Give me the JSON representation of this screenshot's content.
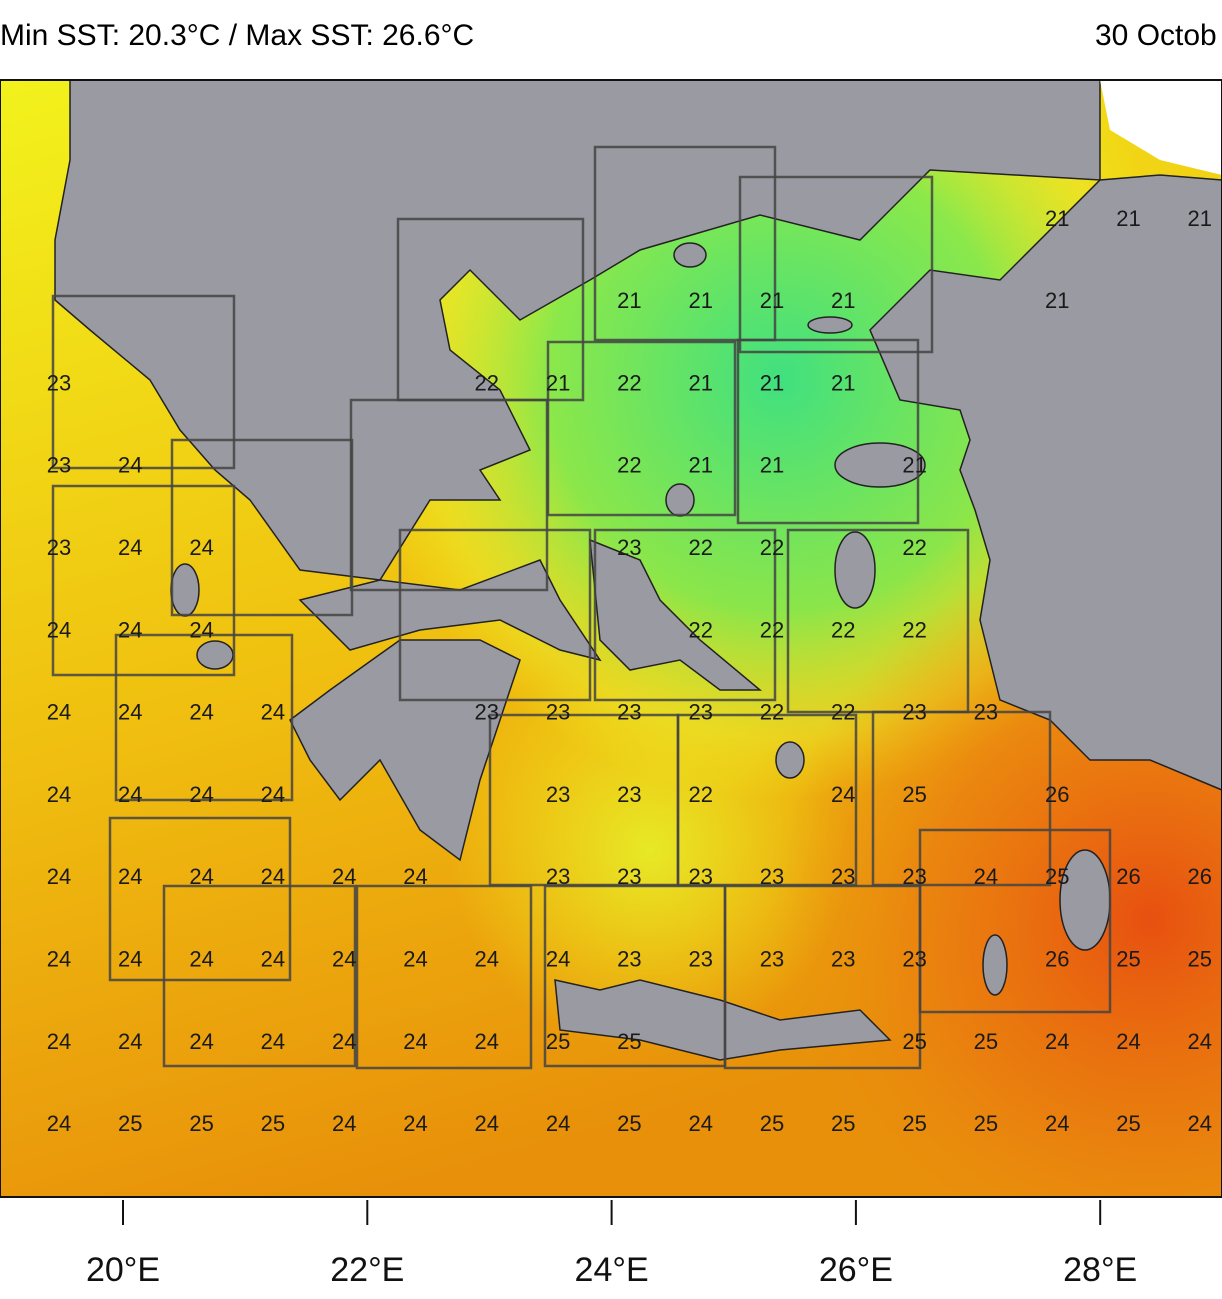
{
  "header": {
    "title": "Min SST: 20.3°C / Max SST: 26.6°C",
    "date": "30 Octob"
  },
  "grid": {
    "rows": [
      [
        null,
        null,
        null,
        null,
        null,
        null,
        null,
        null,
        null,
        null,
        null,
        null,
        null,
        null,
        21,
        21,
        21
      ],
      [
        null,
        null,
        null,
        null,
        null,
        null,
        null,
        null,
        21,
        21,
        21,
        21,
        null,
        null,
        21,
        null,
        null
      ],
      [
        23,
        null,
        null,
        null,
        null,
        null,
        22,
        21,
        22,
        21,
        21,
        21,
        null,
        null,
        null,
        null,
        null
      ],
      [
        23,
        24,
        null,
        null,
        null,
        null,
        null,
        null,
        22,
        21,
        21,
        null,
        21,
        null,
        null,
        null,
        null
      ],
      [
        23,
        24,
        24,
        null,
        null,
        null,
        null,
        null,
        23,
        22,
        22,
        null,
        22,
        null,
        null,
        null,
        null
      ],
      [
        24,
        24,
        24,
        null,
        null,
        null,
        null,
        null,
        null,
        22,
        22,
        22,
        22,
        null,
        null,
        null,
        null
      ],
      [
        24,
        24,
        24,
        24,
        null,
        null,
        23,
        23,
        23,
        23,
        22,
        22,
        23,
        23,
        null,
        null,
        null
      ],
      [
        24,
        24,
        24,
        24,
        null,
        null,
        null,
        23,
        23,
        22,
        null,
        24,
        25,
        null,
        26,
        null,
        null
      ],
      [
        24,
        24,
        24,
        24,
        24,
        24,
        null,
        23,
        23,
        23,
        23,
        23,
        23,
        24,
        25,
        26,
        26
      ],
      [
        24,
        24,
        24,
        24,
        24,
        24,
        24,
        24,
        23,
        23,
        23,
        23,
        23,
        null,
        26,
        25,
        25
      ],
      [
        24,
        24,
        24,
        24,
        24,
        24,
        24,
        25,
        25,
        null,
        null,
        null,
        25,
        25,
        24,
        24,
        24
      ],
      [
        24,
        25,
        25,
        25,
        24,
        24,
        24,
        24,
        25,
        24,
        25,
        25,
        25,
        25,
        24,
        25,
        24
      ]
    ]
  },
  "x_axis": {
    "labels": [
      "20°E",
      "22°E",
      "24°E",
      "26°E",
      "28°E"
    ]
  }
}
